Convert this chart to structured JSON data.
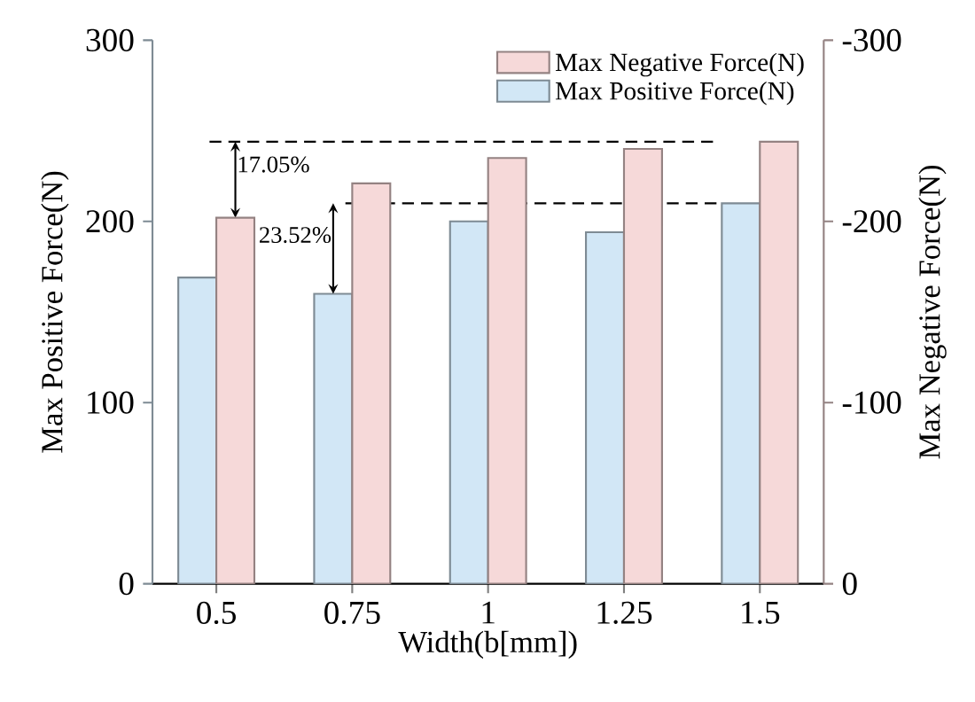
{
  "chart_data": {
    "type": "bar",
    "xlabel": "Width(b[mm])",
    "ylabel": "Max Positive Force(N)",
    "y2label": "Max Negative Force(N)",
    "categories": [
      "0.5",
      "0.75",
      "1",
      "1.25",
      "1.5"
    ],
    "series": [
      {
        "name": "Max Positive Force(N)",
        "color": "#d2e7f6",
        "values": [
          169,
          160,
          200,
          194,
          210
        ]
      },
      {
        "name": "Max Negative Force(N)",
        "color": "#f6d9d9",
        "axis": "y2",
        "values": [
          -202,
          -221,
          -235,
          -240,
          -244
        ]
      }
    ],
    "ylim": [
      0,
      300
    ],
    "yticks": [
      0,
      100,
      200,
      300
    ],
    "y2lim": [
      0,
      -300
    ],
    "y2ticks": [
      0,
      -100,
      -200,
      -300
    ],
    "ref_lines": [
      {
        "axis": "y2",
        "value": -244,
        "color": "#000000",
        "line_style": "dashed"
      },
      {
        "axis": "y",
        "value": 210,
        "color": "#000000",
        "line_style": "dashed"
      }
    ],
    "annotations": [
      {
        "text": "17.05%",
        "x": "0.5",
        "y": 202
      },
      {
        "text": "23.52%",
        "x": "0.75",
        "y": 160
      }
    ],
    "legend": "top right",
    "grid": false
  }
}
